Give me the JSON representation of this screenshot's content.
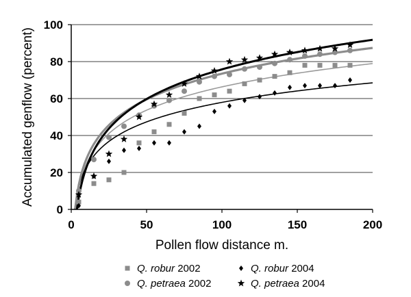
{
  "chart_data": {
    "type": "scatter",
    "xlabel": "Pollen flow distance m.",
    "ylabel": "Accumulated genflow (percent)",
    "xlim": [
      0,
      200
    ],
    "ylim": [
      0,
      100
    ],
    "xticks": [
      "0",
      "50",
      "100",
      "150",
      "200"
    ],
    "yticks": [
      "0",
      "20",
      "40",
      "60",
      "80",
      "100"
    ],
    "grid": "horizontal",
    "legend_position": "bottom",
    "series": [
      {
        "name": "Q. robur",
        "year": "2002",
        "marker": "square",
        "color": "#8c8c8c",
        "trend_color": "#9a9a9a",
        "x": [
          5,
          15,
          25,
          35,
          45,
          55,
          65,
          75,
          85,
          95,
          105,
          115,
          125,
          135,
          145,
          155,
          165,
          175,
          185
        ],
        "y": [
          4,
          14,
          16,
          20,
          36,
          42,
          46,
          52,
          60,
          62,
          64,
          68,
          70,
          72,
          74,
          78,
          78,
          78,
          78
        ],
        "trend": {
          "a": -17.5,
          "b": 18.2
        }
      },
      {
        "name": "Q. robur",
        "year": "2004",
        "marker": "diamond",
        "color": "#000000",
        "trend_color": "#000000",
        "x": [
          5,
          15,
          25,
          35,
          45,
          55,
          65,
          75,
          85,
          95,
          105,
          115,
          125,
          135,
          145,
          155,
          165,
          175,
          185
        ],
        "y": [
          2,
          18,
          26,
          32,
          33,
          36,
          36,
          42,
          45,
          53,
          56,
          59,
          61,
          63,
          66,
          67,
          67,
          67,
          70
        ],
        "trend": {
          "a": -12.3,
          "b": 15.25
        }
      },
      {
        "name": "Q. petraea",
        "year": "2002",
        "marker": "circle",
        "color": "#8c8c8c",
        "trend_color": "#8c8c8c",
        "x": [
          5,
          15,
          25,
          35,
          45,
          55,
          65,
          75,
          85,
          95,
          105,
          115,
          125,
          135,
          145,
          155,
          165,
          175,
          185
        ],
        "y": [
          10,
          27,
          39,
          45,
          51,
          56,
          59,
          64,
          69,
          72,
          73,
          76,
          77,
          79,
          81,
          83,
          84,
          85,
          86
        ],
        "trend": {
          "a": -19.1,
          "b": 20.1
        }
      },
      {
        "name": "Q. petraea",
        "year": "2004",
        "marker": "star",
        "color": "#000000",
        "trend_color": "#000000",
        "x": [
          5,
          15,
          25,
          35,
          45,
          55,
          65,
          75,
          85,
          95,
          105,
          115,
          125,
          135,
          145,
          155,
          165,
          175,
          185
        ],
        "y": [
          8,
          18,
          30,
          38,
          50,
          57,
          62,
          68,
          72,
          75,
          80,
          81,
          82,
          84,
          85,
          86,
          87,
          87,
          89
        ],
        "trend": {
          "a": -30.6,
          "b": 23.1
        }
      }
    ]
  }
}
